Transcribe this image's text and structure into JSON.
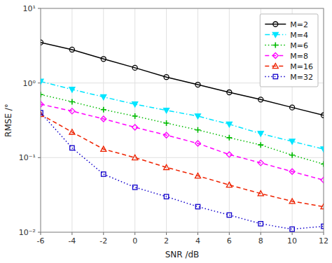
{
  "chart_data": {
    "type": "line",
    "x_label": "SNR /dB",
    "y_label": "RMSE /°",
    "log": "y",
    "grid": true,
    "legend": "upper right",
    "x": [
      -6,
      -4,
      -2,
      0,
      2,
      4,
      6,
      8,
      10,
      12
    ],
    "xlim": [
      -6,
      12
    ],
    "xticks": [
      -6,
      -4,
      -2,
      0,
      2,
      4,
      6,
      8,
      10,
      12
    ],
    "ylim": [
      0.01,
      10
    ],
    "yticks": [
      {
        "value": 0.01,
        "label": "10⁻²"
      },
      {
        "value": 0.1,
        "label": "10⁻¹"
      },
      {
        "value": 1,
        "label": "10⁰"
      },
      {
        "value": 10,
        "label": "10¹"
      }
    ],
    "series": [
      {
        "name": "M=2",
        "color": "#000000",
        "marker": "circle",
        "line_style": "solid",
        "values": [
          3.5,
          2.8,
          2.1,
          1.6,
          1.2,
          0.95,
          0.75,
          0.6,
          0.47,
          0.37
        ]
      },
      {
        "name": "M=4",
        "color": "#00e5ff",
        "marker": "triangle-down",
        "line_style": "dashdot",
        "values": [
          1.05,
          0.82,
          0.65,
          0.52,
          0.43,
          0.36,
          0.28,
          0.21,
          0.165,
          0.13
        ]
      },
      {
        "name": "M=6",
        "color": "#00bb00",
        "marker": "plus",
        "line_style": "dotted",
        "values": [
          0.7,
          0.56,
          0.44,
          0.36,
          0.29,
          0.235,
          0.185,
          0.148,
          0.108,
          0.082
        ]
      },
      {
        "name": "M=8",
        "color": "#ff00ff",
        "marker": "diamond",
        "line_style": "dashed",
        "values": [
          0.52,
          0.42,
          0.33,
          0.255,
          0.2,
          0.155,
          0.11,
          0.085,
          0.065,
          0.05
        ]
      },
      {
        "name": "M=16",
        "color": "#ee2200",
        "marker": "triangle-up",
        "line_style": "dashed",
        "values": [
          0.38,
          0.22,
          0.13,
          0.1,
          0.074,
          0.057,
          0.043,
          0.033,
          0.026,
          0.022
        ]
      },
      {
        "name": "M=32",
        "color": "#1100cc",
        "marker": "square",
        "line_style": "dotted",
        "values": [
          0.4,
          0.135,
          0.06,
          0.04,
          0.03,
          0.022,
          0.017,
          0.013,
          0.011,
          0.012
        ]
      }
    ]
  }
}
